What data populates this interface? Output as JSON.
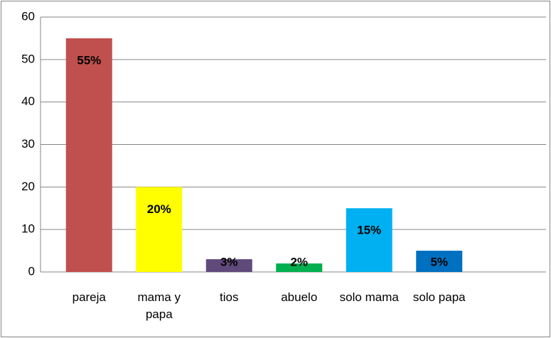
{
  "chart_data": {
    "type": "bar",
    "categories": [
      "pareja",
      "mama y papa",
      "tios",
      "abuelo",
      "solo mama",
      "solo papa",
      null
    ],
    "values": [
      55,
      20,
      3,
      2,
      15,
      5,
      null
    ],
    "value_labels": [
      "55%",
      "20%",
      "3%",
      "2%",
      "15%",
      "5%",
      null
    ],
    "colors": [
      "#c0504d",
      "#ffff00",
      "#604a7b",
      "#00b050",
      "#00b0f0",
      "#0070c0",
      null
    ],
    "ylim": [
      0,
      60
    ],
    "yticks": [
      0,
      10,
      20,
      30,
      40,
      50,
      60
    ],
    "grid": true
  }
}
